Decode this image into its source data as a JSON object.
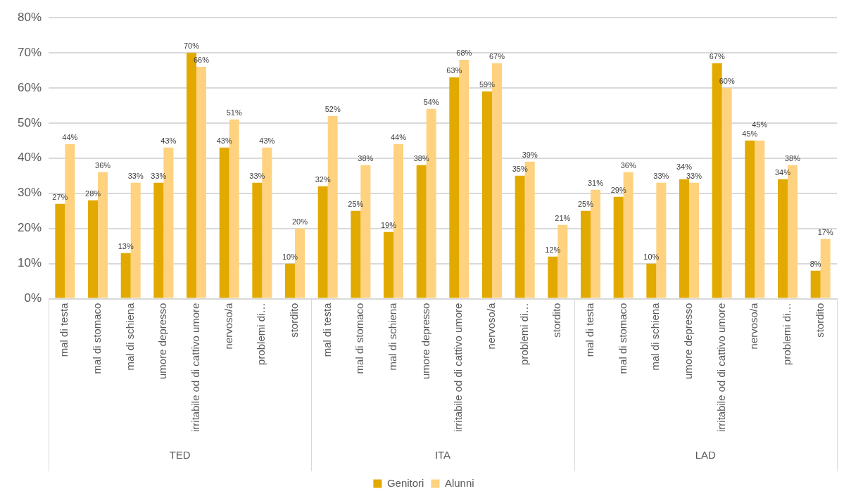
{
  "chart_data": {
    "type": "bar",
    "categories": [
      "mal di testa",
      "mal di stomaco",
      "mal di schiena",
      "umore depresso",
      "irritabile od di cattivo umore",
      "nervoso/a",
      "problemi di…",
      "stordito",
      "mal di testa",
      "mal di stomaco",
      "mal di schiena",
      "umore depresso",
      "irritabile od di cattivo umore",
      "nervoso/a",
      "problemi di…",
      "stordito",
      "mal di testa",
      "mal di stomaco",
      "mal di schiena",
      "umore depresso",
      "irritabile od di cattivo umore",
      "nervoso/a",
      "problemi di…",
      "stordito"
    ],
    "series": [
      {
        "name": "Genitori",
        "color": "#e2aa00",
        "values": [
          27,
          28,
          13,
          33,
          70,
          43,
          33,
          10,
          32,
          25,
          19,
          38,
          63,
          59,
          35,
          12,
          25,
          29,
          10,
          34,
          67,
          45,
          34,
          8
        ],
        "value_labels": [
          "27%",
          "28%",
          "13%",
          "33%",
          "70%",
          "43%",
          "33%",
          "10%",
          "32%",
          "25%",
          "19%",
          "38%",
          "63%",
          "59%",
          "35%",
          "12%",
          "25%",
          "29%",
          "10%",
          "34%",
          "67%",
          "45%",
          "34%",
          "8%"
        ]
      },
      {
        "name": "Alunni",
        "color": "#ffd280",
        "values": [
          44,
          36,
          33,
          43,
          66,
          51,
          43,
          20,
          52,
          38,
          44,
          54,
          68,
          67,
          39,
          21,
          31,
          36,
          33,
          33,
          60,
          45,
          38,
          17
        ],
        "value_labels": [
          "44%",
          "36%",
          "33%",
          "43%",
          "66%",
          "51%",
          "43%",
          "20%",
          "52%",
          "38%",
          "44%",
          "54%",
          "68%",
          "67%",
          "39%",
          "21%",
          "31%",
          "36%",
          "33%",
          "33%",
          "60%",
          "45%",
          "38%",
          "17%"
        ]
      }
    ],
    "annotations": [
      "TED",
      "ITA",
      "LAD"
    ],
    "ylim": [
      0,
      80
    ],
    "yticks": [
      {
        "value": 0,
        "label": "0%"
      },
      {
        "value": 10,
        "label": "10%"
      },
      {
        "value": 20,
        "label": "20%"
      },
      {
        "value": 30,
        "label": "30%"
      },
      {
        "value": 40,
        "label": "40%"
      },
      {
        "value": 50,
        "label": "50%"
      },
      {
        "value": 60,
        "label": "60%"
      },
      {
        "value": 70,
        "label": "70%"
      },
      {
        "value": 80,
        "label": "80%"
      }
    ],
    "grid": "y",
    "legend": "bottom"
  }
}
